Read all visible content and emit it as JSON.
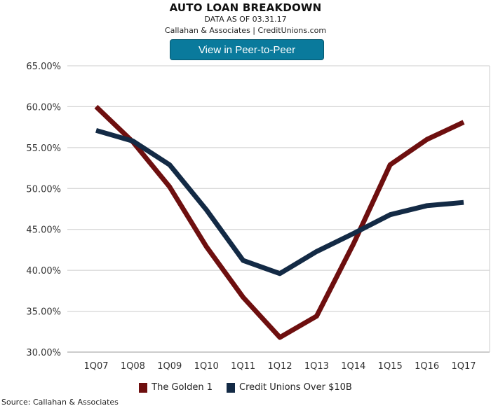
{
  "header": {
    "title": "AUTO LOAN BREAKDOWN",
    "subtitle": "DATA AS OF 03.31.17",
    "credit": "Callahan & Associates | CreditUnions.com"
  },
  "peer_button": {
    "label": "View in Peer-to-Peer"
  },
  "footer": {
    "source": "Source: Callahan & Associates"
  },
  "colors": {
    "button": "#0a7a9c"
  },
  "chart_data": {
    "type": "line",
    "categories": [
      "1Q07",
      "1Q08",
      "1Q09",
      "1Q10",
      "1Q11",
      "1Q12",
      "1Q13",
      "1Q14",
      "1Q15",
      "1Q16",
      "1Q17"
    ],
    "ylim": [
      30,
      65
    ],
    "yticks": [
      30,
      35,
      40,
      45,
      50,
      55,
      60,
      65
    ],
    "ytick_labels": [
      "30.00%",
      "35.00%",
      "40.00%",
      "45.00%",
      "50.00%",
      "55.00%",
      "60.00%",
      "65.00%"
    ],
    "grid": "horizontal",
    "legend_position": "bottom",
    "series": [
      {
        "name": "The Golden 1",
        "color": "#6e0f0f",
        "values": [
          60.0,
          55.7,
          50.2,
          42.9,
          36.7,
          31.8,
          34.4,
          43.2,
          52.9,
          56.0,
          58.1
        ]
      },
      {
        "name": "Credit Unions Over $10B",
        "color": "#132a45",
        "values": [
          57.1,
          55.8,
          52.9,
          47.4,
          41.2,
          39.6,
          42.3,
          44.5,
          46.8,
          47.9,
          48.3
        ]
      }
    ]
  }
}
